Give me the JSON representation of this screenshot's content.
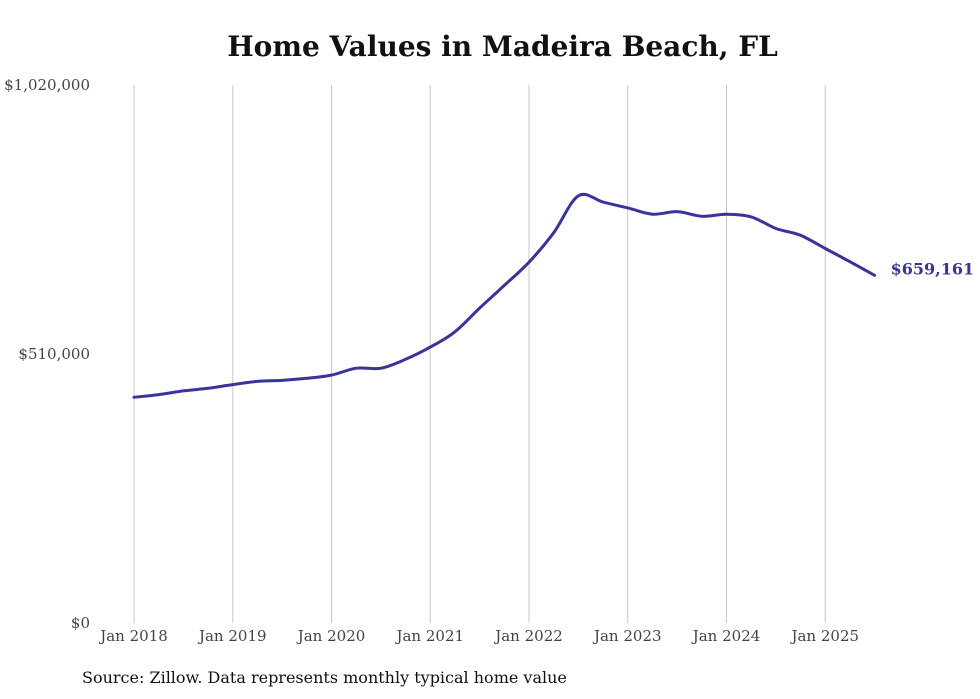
{
  "title": "Home Values in Madeira Beach, FL",
  "source": "Source: Zillow. Data represents monthly typical home value",
  "colors": {
    "line": "#38349a",
    "grid": "#c8c8c8",
    "text": "#444444"
  },
  "chart_data": {
    "type": "line",
    "title": "Home Values in Madeira Beach, FL",
    "xlabel": "",
    "ylabel": "",
    "ylim": [
      0,
      1020000
    ],
    "yticks": [
      0,
      510000,
      1020000
    ],
    "ytick_labels": [
      "$0",
      "$510,000",
      "$1,020,000"
    ],
    "xlim": [
      "2018-01",
      "2025-07"
    ],
    "xtick_labels": [
      "Jan 2018",
      "Jan 2019",
      "Jan 2020",
      "Jan 2021",
      "Jan 2022",
      "Jan 2023",
      "Jan 2024",
      "Jan 2025"
    ],
    "grid": "vertical",
    "end_label": "$659,161",
    "series": [
      {
        "x": [
          "2018-01",
          "2018-04",
          "2018-07",
          "2018-10",
          "2019-01",
          "2019-04",
          "2019-07",
          "2019-10",
          "2020-01",
          "2020-04",
          "2020-07",
          "2020-10",
          "2021-01",
          "2021-04",
          "2021-07",
          "2021-10",
          "2022-01",
          "2022-04",
          "2022-07",
          "2022-10",
          "2023-01",
          "2023-04",
          "2023-07",
          "2023-10",
          "2024-01",
          "2024-04",
          "2024-07",
          "2024-10",
          "2025-01",
          "2025-04",
          "2025-07"
        ],
        "values": [
          428000,
          433000,
          440000,
          445000,
          452000,
          458000,
          460000,
          464000,
          470000,
          483000,
          483000,
          500000,
          523000,
          552000,
          597000,
          640000,
          684000,
          740000,
          810000,
          798000,
          787000,
          775000,
          780000,
          771000,
          775000,
          770000,
          748000,
          735000,
          710000,
          685000,
          659161
        ]
      }
    ]
  }
}
